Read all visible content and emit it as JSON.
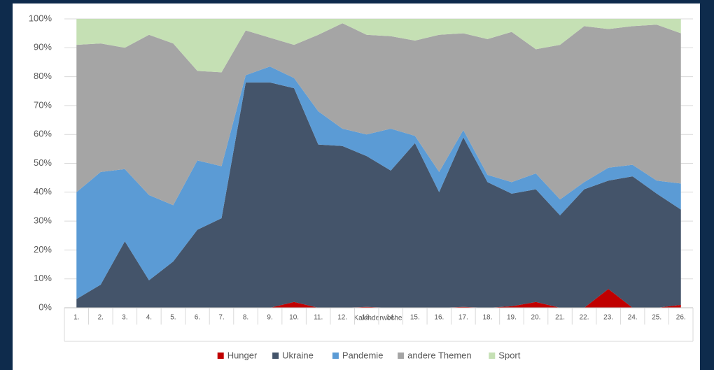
{
  "chart_data": {
    "type": "stacked_area",
    "x_label": "Kalenderwoche",
    "categories": [
      "1.",
      "2.",
      "3.",
      "4.",
      "5.",
      "6.",
      "7.",
      "8.",
      "9.",
      "10.",
      "11.",
      "12.",
      "13.",
      "14.",
      "15.",
      "16.",
      "17.",
      "18.",
      "19.",
      "20.",
      "21.",
      "22.",
      "23.",
      "24.",
      "25.",
      "26."
    ],
    "series": [
      {
        "name": "Hunger",
        "color": "#c00000",
        "values": [
          0,
          0,
          0,
          0,
          0,
          0,
          0,
          0,
          0,
          2,
          0,
          0,
          0.3,
          0,
          0,
          0,
          0.3,
          0,
          0.5,
          2,
          0,
          0,
          6.5,
          0,
          0,
          1
        ]
      },
      {
        "name": "Ukraine",
        "color": "#44546a",
        "values": [
          3,
          8,
          23,
          9.5,
          16,
          27,
          31,
          78,
          78,
          74,
          56.5,
          56,
          52.2,
          47.5,
          57,
          40,
          58.7,
          43.5,
          39,
          39,
          32,
          41,
          37.5,
          45.5,
          39.5,
          33
        ]
      },
      {
        "name": "Pandemie",
        "color": "#5b9bd5",
        "values": [
          37,
          39,
          25,
          29.5,
          19.5,
          24,
          18,
          2.5,
          5.5,
          3.5,
          11.5,
          6,
          7.5,
          14.5,
          2.5,
          7,
          2.5,
          2.5,
          4,
          5.5,
          5.5,
          2.5,
          4.5,
          4,
          4.5,
          9
        ]
      },
      {
        "name": "andere Themen",
        "color": "#a5a5a5",
        "values": [
          51,
          44.5,
          42,
          55.5,
          56,
          31,
          32.5,
          15.5,
          10,
          11.5,
          26.5,
          36.5,
          34.5,
          32,
          33,
          47.5,
          33.5,
          47,
          52,
          43,
          53.5,
          54,
          48,
          48,
          54,
          52
        ]
      },
      {
        "name": "Sport",
        "color": "#c5e0b4",
        "values": [
          9,
          8.5,
          10,
          5.5,
          8.5,
          18,
          18.5,
          4,
          6.5,
          9,
          5.5,
          1.5,
          5.5,
          6,
          7.5,
          5.5,
          5,
          7,
          4.5,
          10.5,
          9,
          2.5,
          3.5,
          2.5,
          2,
          5
        ]
      }
    ],
    "ylim": [
      0,
      100
    ],
    "yticks": [
      {
        "value": 0,
        "label": "0%"
      },
      {
        "value": 10,
        "label": "10%"
      },
      {
        "value": 20,
        "label": "20%"
      },
      {
        "value": 30,
        "label": "30%"
      },
      {
        "value": 40,
        "label": "40%"
      },
      {
        "value": 50,
        "label": "50%"
      },
      {
        "value": 60,
        "label": "60%"
      },
      {
        "value": 70,
        "label": "70%"
      },
      {
        "value": 80,
        "label": "80%"
      },
      {
        "value": 90,
        "label": "90%"
      },
      {
        "value": 100,
        "label": "100%"
      }
    ],
    "grid": true,
    "legend": "bottom"
  }
}
